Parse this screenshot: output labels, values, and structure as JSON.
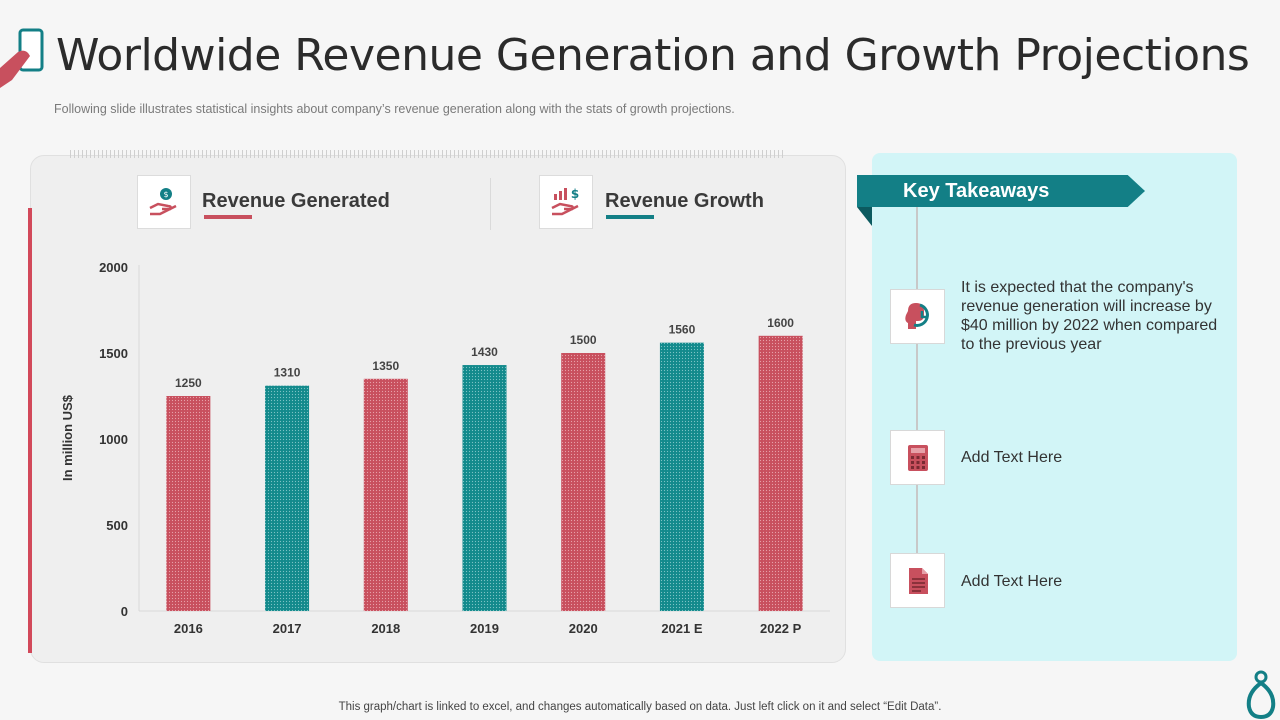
{
  "header": {
    "title": "Worldwide Revenue Generation and Growth Projections",
    "subtitle": "Following slide illustrates statistical insights about company’s revenue  generation  along with the stats of growth  projections."
  },
  "legend": {
    "revenue_generated": "Revenue Generated",
    "revenue_growth": "Revenue Growth"
  },
  "colors": {
    "red": "#c8505e",
    "teal": "#138a8c",
    "accent_red": "#d2495a",
    "accent_teal": "#137f86"
  },
  "chart_data": {
    "type": "bar",
    "categories": [
      "2016",
      "2017",
      "2018",
      "2019",
      "2020",
      "2021 E",
      "2022 P"
    ],
    "values": [
      1250,
      1310,
      1350,
      1430,
      1500,
      1560,
      1600
    ],
    "bar_series": [
      "Revenue Generated",
      "Revenue Growth",
      "Revenue Generated",
      "Revenue Growth",
      "Revenue Generated",
      "Revenue Growth",
      "Revenue Generated"
    ],
    "ylabel": "In million US$",
    "xlabel": "",
    "ylim": [
      0,
      2000
    ],
    "yticks": [
      0,
      500,
      1000,
      1500,
      2000
    ],
    "grid": false
  },
  "takeaways": {
    "title": "Key Takeaways",
    "items": [
      {
        "icon": "growth-head-icon",
        "text": "It is expected that the company's revenue generation will increase by $40 million by 2022 when compared to the previous year"
      },
      {
        "icon": "calculator-icon",
        "text": "Add Text Here"
      },
      {
        "icon": "document-icon",
        "text": "Add Text Here"
      }
    ]
  },
  "footer": {
    "note": "This graph/chart is linked to excel,  and changes automatically based on data. Just left click on it and select “Edit Data”."
  }
}
